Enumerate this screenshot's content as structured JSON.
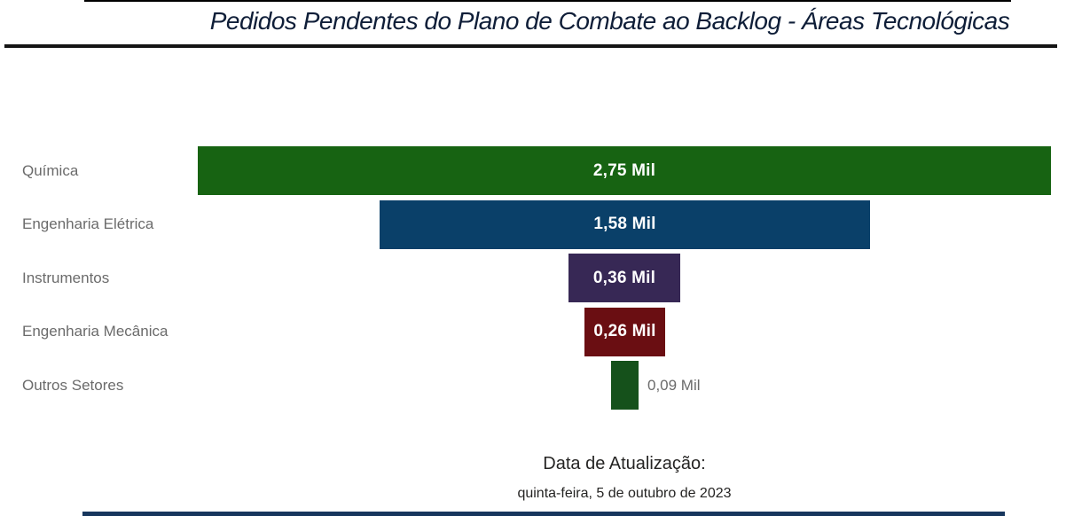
{
  "page": {
    "title": "Pedidos Pendentes do Plano de Combate ao Backlog - Áreas Tecnológicas",
    "title_color": "#0F1E38"
  },
  "chart_data": {
    "type": "bar",
    "variant": "horizontal-centered-funnel",
    "title": "Pedidos Pendentes do Plano de Combate ao Backlog - Áreas Tecnológicas",
    "unit": "Mil",
    "categories": [
      "Química",
      "Engenharia Elétrica",
      "Instrumentos",
      "Engenharia Mecânica",
      "Outros Setores"
    ],
    "values": [
      2.75,
      1.58,
      0.36,
      0.26,
      0.09
    ],
    "value_labels": [
      "2,75 Mil",
      "1,58 Mil",
      "0,36 Mil",
      "0,26 Mil",
      "0,09 Mil"
    ],
    "label_positions": [
      "inside",
      "inside",
      "inside",
      "inside",
      "outside"
    ],
    "bar_colors": [
      "#176312",
      "#0A4069",
      "#372855",
      "#6A0E12",
      "#15511B"
    ],
    "xlim": [
      0,
      2.75
    ],
    "grid": false,
    "legend": "none",
    "category_label_color": "#6B6B6B",
    "inside_value_color": "#FFFFFF",
    "outside_value_color": "#6B6B6B"
  },
  "footer": {
    "label": "Data de Atualização:",
    "date": "quinta-feira, 5 de outubro de 2023"
  }
}
